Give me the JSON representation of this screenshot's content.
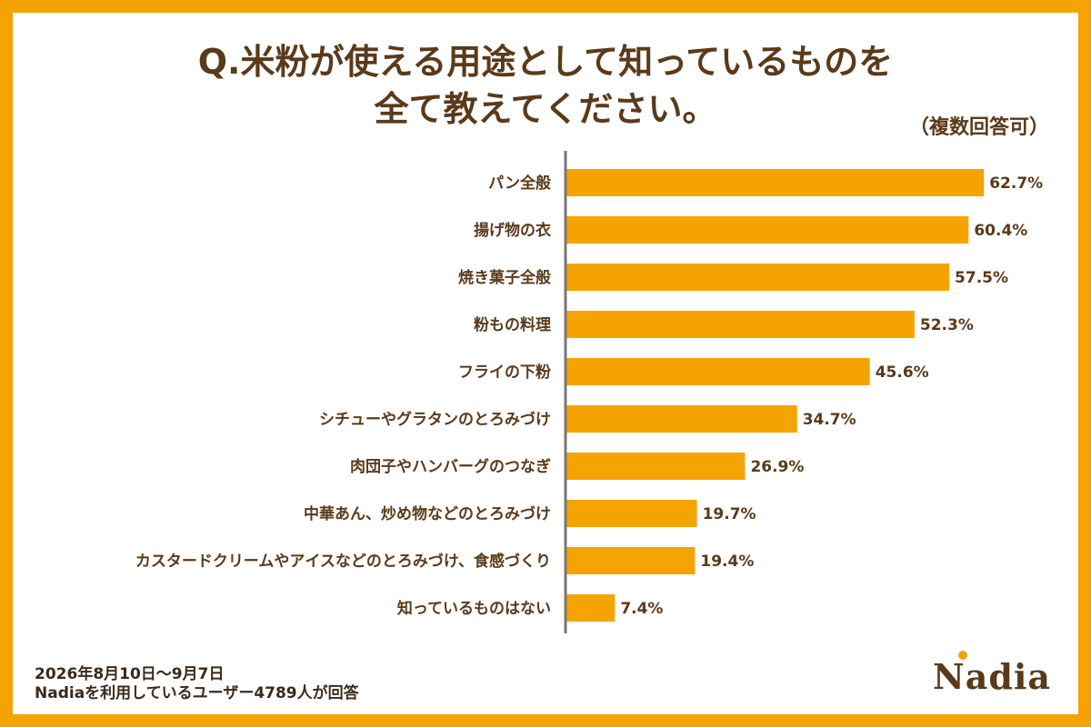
{
  "title_line1": "Q.米粉が使える用途として知っているものを",
  "title_line2": "全て教えてください。",
  "note": "（複数回答可）",
  "footer_line1": "2026年8月10日～9月7日",
  "footer_line2": "Nadiaを利用しているユーザー4789人が回答",
  "logo_text": "Nadia",
  "colors": {
    "bar": "#F5A300",
    "frame": "#F5A300",
    "text": "#5A3A1A",
    "axis": "#777777"
  },
  "chart_data": {
    "type": "bar",
    "orientation": "horizontal",
    "categories": [
      "パン全般",
      "揚げ物の衣",
      "焼き菓子全般",
      "粉もの料理",
      "フライの下粉",
      "シチューやグラタンのとろみづけ",
      "肉団子やハンバーグのつなぎ",
      "中華あん、炒め物などのとろみづけ",
      "カスタードクリームやアイスなどのとろみづけ、食感づくり",
      "知っているものはない"
    ],
    "values": [
      62.7,
      60.4,
      57.5,
      52.3,
      45.6,
      34.7,
      26.9,
      19.7,
      19.4,
      7.4
    ],
    "labels": [
      "62.7%",
      "60.4%",
      "57.5%",
      "52.3%",
      "45.6%",
      "34.7%",
      "26.9%",
      "19.7%",
      "19.4%",
      "7.4%"
    ],
    "title": "Q.米粉が使える用途として知っているものを全て教えてください。",
    "xlabel": "",
    "ylabel": "",
    "xlim": [
      0,
      70
    ],
    "grid": false,
    "legend": "none"
  }
}
